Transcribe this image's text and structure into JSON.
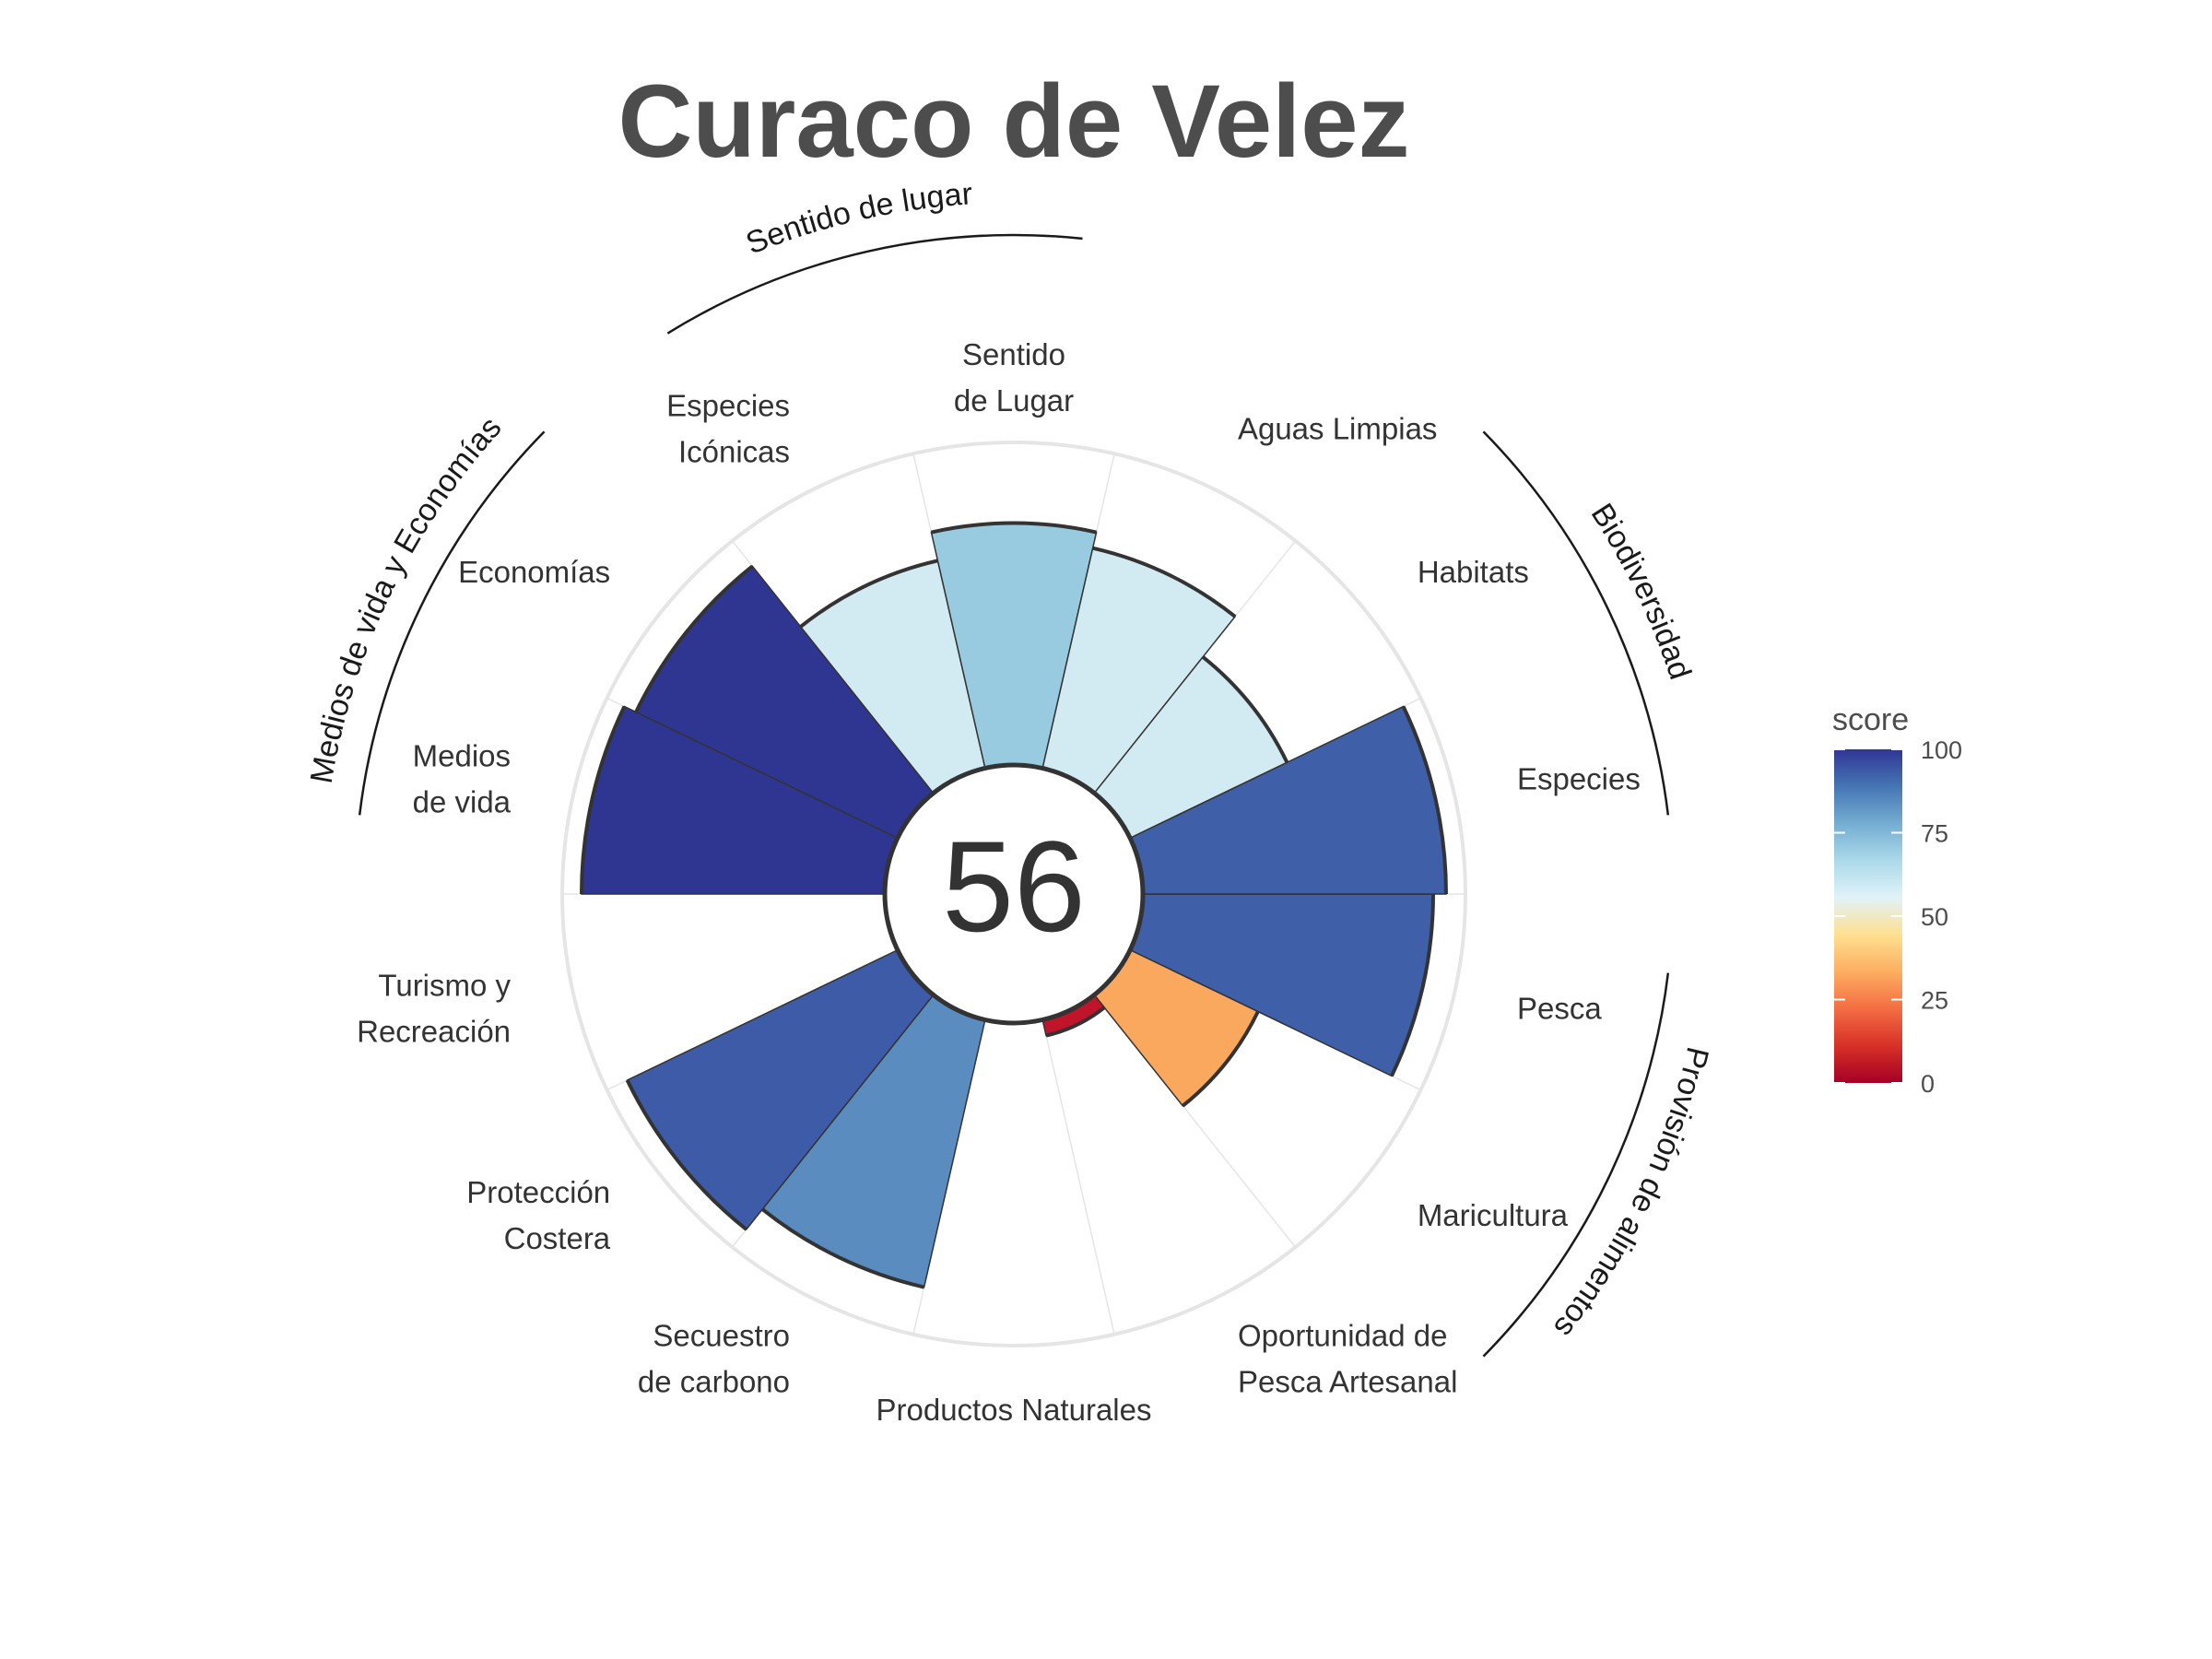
{
  "chart_data": {
    "type": "bar",
    "coord": "polar",
    "title": "Curaco de Velez",
    "overall_score": "56",
    "ylim": [
      0,
      100
    ],
    "categories": [
      {
        "label": [
          "Pesca"
        ],
        "group": "food",
        "value": 90,
        "color": "#3f5fa8"
      },
      {
        "label": [
          "Maricultura"
        ],
        "group": "food",
        "value": 44,
        "color": "#fba85f"
      },
      {
        "label": [
          "Oportunidad de",
          "Pesca Artesanal"
        ],
        "group": "",
        "value": 5,
        "color": "#c0142a"
      },
      {
        "label": [
          "Productos Naturales"
        ],
        "group": "",
        "value": null,
        "color": ""
      },
      {
        "label": [
          "Secuestro",
          "de carbono"
        ],
        "group": "",
        "value": 85,
        "color": "#5a8cc0"
      },
      {
        "label": [
          "Protección",
          "Costera"
        ],
        "group": "",
        "value": 93,
        "color": "#3e5ba8"
      },
      {
        "label": [
          "Turismo y",
          "Recreación"
        ],
        "group": "",
        "value": null,
        "color": ""
      },
      {
        "label": [
          "Medios",
          "de vida"
        ],
        "group": "livelihood",
        "value": 94,
        "color": "#2f3692"
      },
      {
        "label": [
          "Economías"
        ],
        "group": "livelihood",
        "value": 90,
        "color": "#2f3692"
      },
      {
        "label": [
          "Especies",
          "Icónicas"
        ],
        "group": "sense",
        "value": 66,
        "color": "#d2ebf3"
      },
      {
        "label": [
          "Sentido",
          "de Lugar"
        ],
        "group": "sense",
        "value": 75,
        "color": "#98cbe0"
      },
      {
        "label": [
          "Aguas Limpias"
        ],
        "group": "",
        "value": 70,
        "color": "#d2ebf3"
      },
      {
        "label": [
          "Habitats"
        ],
        "group": "bio",
        "value": 54,
        "color": "#d2ebf3"
      },
      {
        "label": [
          "Especies"
        ],
        "group": "bio",
        "value": 94,
        "color": "#3f5fa8"
      }
    ],
    "groups": [
      {
        "id": "food",
        "label": "Provisión de alimentos"
      },
      {
        "id": "bio",
        "label": "Biodiversidad"
      },
      {
        "id": "sense",
        "label": "Sentido de lugar"
      },
      {
        "id": "livelihood",
        "label": "Medios de vida y Economías"
      }
    ],
    "legend": {
      "title": "score",
      "ticks": [
        "0",
        "25",
        "50",
        "75",
        "100"
      ],
      "placement": "right",
      "colors": [
        "#a50026",
        "#d73027",
        "#f46d43",
        "#fdae61",
        "#fee090",
        "#e0f3f8",
        "#abd9e9",
        "#74add1",
        "#4575b4",
        "#313695"
      ]
    }
  }
}
